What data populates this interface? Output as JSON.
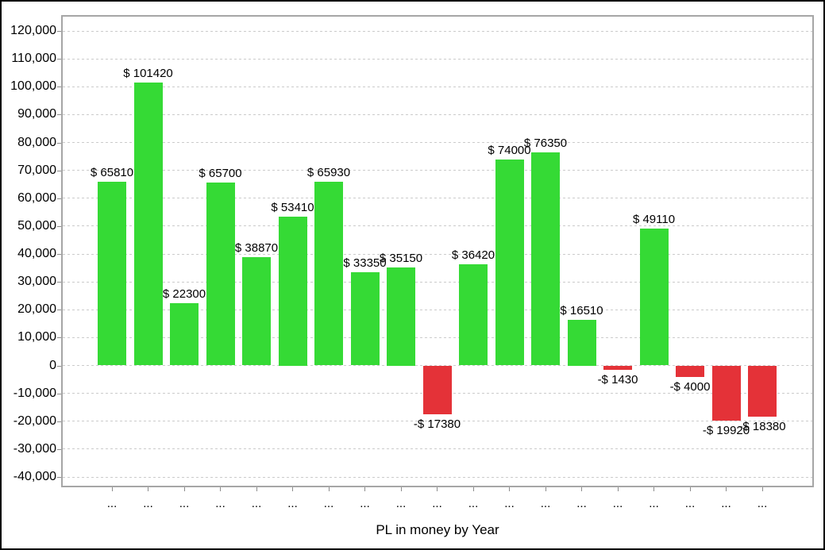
{
  "chart_data": {
    "type": "bar",
    "title": "",
    "xlabel": "PL in money by Year",
    "ylabel": "",
    "grid": true,
    "legend": "none",
    "categories": [
      "...",
      "...",
      "...",
      "...",
      "...",
      "...",
      "...",
      "...",
      "...",
      "...",
      "...",
      "...",
      "...",
      "...",
      "...",
      "...",
      "...",
      "...",
      "..."
    ],
    "values": [
      65810,
      101420,
      22300,
      65700,
      38870,
      53410,
      65930,
      33350,
      35150,
      -17380,
      36420,
      74000,
      76350,
      16510,
      -1430,
      49110,
      -4000,
      -19920,
      -18380
    ],
    "bar_labels": [
      "$ 65810",
      "$ 101420",
      "$ 22300",
      "$ 65700",
      "$ 38870",
      "$ 53410",
      "$ 65930",
      "$ 33350",
      "$ 35150",
      "-$ 17380",
      "$ 36420",
      "$ 74000",
      "$ 76350",
      "$ 16510",
      "-$ 1430",
      "$ 49110",
      "-$ 4000",
      "-$ 19920",
      "-$ 18380"
    ],
    "ylim": [
      -43700,
      125700
    ],
    "ytick_step": 10000,
    "yticks": [
      {
        "value": 120000,
        "label": "120,000"
      },
      {
        "value": 110000,
        "label": "110,000"
      },
      {
        "value": 100000,
        "label": "100,000"
      },
      {
        "value": 90000,
        "label": "90,000"
      },
      {
        "value": 80000,
        "label": "80,000"
      },
      {
        "value": 70000,
        "label": "70,000"
      },
      {
        "value": 60000,
        "label": "60,000"
      },
      {
        "value": 50000,
        "label": "50,000"
      },
      {
        "value": 40000,
        "label": "40,000"
      },
      {
        "value": 30000,
        "label": "30,000"
      },
      {
        "value": 20000,
        "label": "20,000"
      },
      {
        "value": 10000,
        "label": "10,000"
      },
      {
        "value": 0,
        "label": "0"
      },
      {
        "value": -10000,
        "label": "-10,000"
      },
      {
        "value": -20000,
        "label": "-20,000"
      },
      {
        "value": -30000,
        "label": "-30,000"
      },
      {
        "value": -40000,
        "label": "-40,000"
      }
    ],
    "colors": {
      "positive": "#35DA35",
      "negative": "#E43238",
      "grid": "#CBCBCB",
      "plot_border": "#A6A6A6",
      "tick": "#8C8C8C",
      "text": "#000000"
    }
  }
}
